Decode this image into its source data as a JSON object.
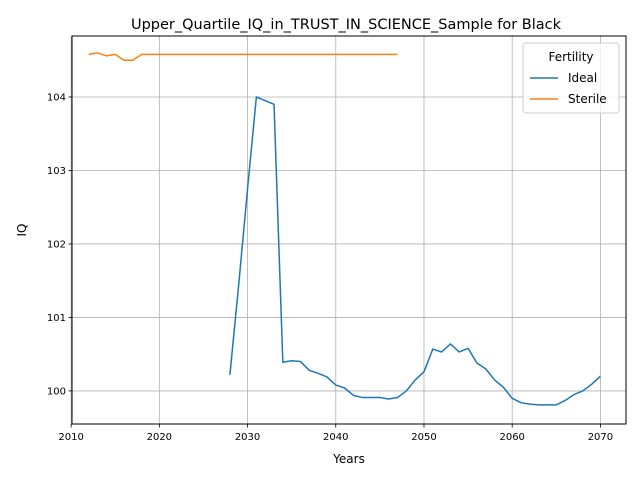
{
  "chart_data": {
    "type": "line",
    "title": "Upper_Quartile_IQ_in_TRUST_IN_SCIENCE_Sample for Black",
    "xlabel": "Years",
    "ylabel": "IQ",
    "xlim": [
      2010.1,
      2072.9
    ],
    "ylim": [
      99.55,
      104.83
    ],
    "xticks": [
      2010,
      2020,
      2030,
      2040,
      2050,
      2060,
      2070
    ],
    "yticks": [
      100,
      101,
      102,
      103,
      104
    ],
    "grid": true,
    "legend": {
      "title": "Fertility",
      "position": "top-right"
    },
    "series": [
      {
        "name": "Ideal",
        "color": "#1f77b4",
        "x": [
          2028,
          2029,
          2030,
          2031,
          2032,
          2033,
          2034,
          2035,
          2036,
          2037,
          2038,
          2039,
          2040,
          2041,
          2042,
          2043,
          2044,
          2045,
          2046,
          2047,
          2048,
          2049,
          2050,
          2051,
          2052,
          2053,
          2054,
          2055,
          2056,
          2057,
          2058,
          2059,
          2060,
          2061,
          2062,
          2063,
          2064,
          2065,
          2066,
          2067,
          2068,
          2069,
          2070
        ],
        "y": [
          100.22,
          101.45,
          102.75,
          104.0,
          103.95,
          103.9,
          100.39,
          100.41,
          100.4,
          100.28,
          100.24,
          100.19,
          100.08,
          100.04,
          99.94,
          99.91,
          99.91,
          99.91,
          99.89,
          99.91,
          100.0,
          100.15,
          100.26,
          100.57,
          100.53,
          100.64,
          100.53,
          100.58,
          100.38,
          100.3,
          100.15,
          100.05,
          99.9,
          99.84,
          99.82,
          99.81,
          99.81,
          99.81,
          99.87,
          99.95,
          100.0,
          100.09,
          100.2
        ]
      },
      {
        "name": "Sterile",
        "color": "#ff7f0e",
        "x": [
          2012,
          2013,
          2014,
          2015,
          2016,
          2017,
          2018,
          2019,
          2020,
          2021,
          2022,
          2023,
          2024,
          2025,
          2026,
          2027,
          2028,
          2029,
          2030,
          2031,
          2032,
          2033,
          2034,
          2035,
          2036,
          2037,
          2038,
          2039,
          2040,
          2041,
          2042,
          2043,
          2044,
          2045,
          2046,
          2047
        ],
        "y": [
          104.58,
          104.6,
          104.56,
          104.58,
          104.5,
          104.5,
          104.58,
          104.58,
          104.58,
          104.58,
          104.58,
          104.58,
          104.58,
          104.58,
          104.58,
          104.58,
          104.58,
          104.58,
          104.58,
          104.58,
          104.58,
          104.58,
          104.58,
          104.58,
          104.58,
          104.58,
          104.58,
          104.58,
          104.58,
          104.58,
          104.58,
          104.58,
          104.58,
          104.58,
          104.58,
          104.58
        ]
      }
    ]
  }
}
